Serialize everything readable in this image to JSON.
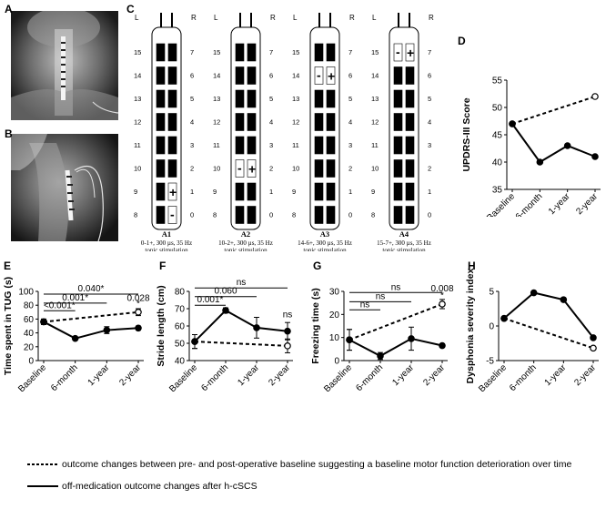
{
  "panels": {
    "A": "A",
    "B": "B",
    "C": "C",
    "D": "D",
    "E": "E",
    "F": "F",
    "G": "G",
    "H": "H"
  },
  "electrodes": [
    {
      "id": "A1",
      "caption": [
        "0-1+, 300 µs, 35 Hz",
        "tonic stimulation"
      ],
      "contacts": {
        "9": "+",
        "8": "-"
      }
    },
    {
      "id": "A2",
      "caption": [
        "10-2+, 300 µs, 35 Hz",
        "tonic stimulation"
      ],
      "contacts": {
        "10": "- +"
      }
    },
    {
      "id": "A3",
      "caption": [
        "14-6+, 300 µs, 35 Hz",
        "tonic stimulation"
      ],
      "contacts": {
        "14": "- +"
      }
    },
    {
      "id": "A4",
      "caption": [
        "15-7+, 300 µs, 35 Hz",
        "tonic stimulation"
      ],
      "contacts": {
        "15": "- +"
      }
    }
  ],
  "electrode_side_labels": {
    "left": "L",
    "right": "R"
  },
  "electrode_left_numbers": [
    "15",
    "14",
    "13",
    "12",
    "11",
    "10",
    "9",
    "8"
  ],
  "electrode_right_numbers": [
    "7",
    "6",
    "5",
    "4",
    "3",
    "2",
    "1",
    "0"
  ],
  "chart_data": [
    {
      "panel": "D",
      "type": "line",
      "categories": [
        "Baseline",
        "6-month",
        "1-year",
        "2-year"
      ],
      "ylabel": "UPDRS-III Score",
      "ylim": [
        35,
        55
      ],
      "yticks": [
        35,
        40,
        45,
        50,
        55
      ],
      "series": [
        {
          "style": "solid",
          "values": [
            47,
            40,
            43,
            41
          ]
        },
        {
          "style": "dashed",
          "values": [
            47,
            null,
            null,
            52
          ]
        }
      ]
    },
    {
      "panel": "E",
      "type": "line",
      "categories": [
        "Baseline",
        "6-month",
        "1-year",
        "2-year"
      ],
      "ylabel": "Time spent in TUG (s)",
      "ylim": [
        0,
        100
      ],
      "yticks": [
        0,
        20,
        40,
        60,
        80,
        100
      ],
      "series": [
        {
          "style": "solid",
          "values": [
            56,
            32,
            44,
            47
          ],
          "errors": [
            4,
            0,
            5,
            3
          ]
        },
        {
          "style": "dashed",
          "values": [
            56,
            null,
            null,
            70
          ],
          "errors": [
            4,
            0,
            0,
            5
          ]
        }
      ],
      "annotations": [
        {
          "text": "<0.001*",
          "from": 0,
          "to": 1,
          "y": 72
        },
        {
          "text": "0.001*",
          "from": 0,
          "to": 2,
          "y": 83
        },
        {
          "text": "0.040*",
          "from": 0,
          "to": 3,
          "y": 96
        },
        {
          "text": "0.028",
          "at": 3,
          "y": 86
        },
        {
          "text": "*",
          "at": 3,
          "y": 78
        }
      ]
    },
    {
      "panel": "F",
      "type": "line",
      "categories": [
        "Baseline",
        "6-month",
        "1-year",
        "2-year"
      ],
      "ylabel": "Stride length (cm)",
      "ylim": [
        40,
        80
      ],
      "yticks": [
        40,
        50,
        60,
        70,
        80
      ],
      "series": [
        {
          "style": "solid",
          "values": [
            51,
            69,
            59,
            57
          ],
          "errors": [
            4,
            1.5,
            6,
            5
          ]
        },
        {
          "style": "dashed",
          "values": [
            51,
            null,
            null,
            48.5
          ],
          "errors": [
            4,
            0,
            0,
            4
          ]
        }
      ],
      "annotations": [
        {
          "text": "0.001*",
          "from": 0,
          "to": 1,
          "y": 72
        },
        {
          "text": "0.060",
          "from": 0,
          "to": 2,
          "y": 77
        },
        {
          "text": "ns",
          "from": 0,
          "to": 3,
          "y": 82
        },
        {
          "text": "ns",
          "at": 3,
          "y": 65
        }
      ]
    },
    {
      "panel": "G",
      "type": "line",
      "categories": [
        "Baseline",
        "6-month",
        "1-year",
        "2-year"
      ],
      "ylabel": "Freezing time (s)",
      "ylim": [
        0,
        30
      ],
      "yticks": [
        0,
        10,
        20,
        30
      ],
      "series": [
        {
          "style": "solid",
          "values": [
            9,
            2,
            9.5,
            6.5
          ],
          "errors": [
            4.5,
            1.5,
            5,
            0.8
          ]
        },
        {
          "style": "dashed",
          "values": [
            9,
            null,
            null,
            24.5
          ],
          "errors": [
            4.5,
            0,
            0,
            2
          ]
        }
      ],
      "annotations": [
        {
          "text": "ns",
          "from": 0,
          "to": 1,
          "y": 22
        },
        {
          "text": "ns",
          "from": 0,
          "to": 2,
          "y": 25.5
        },
        {
          "text": "ns",
          "from": 0,
          "to": 3,
          "y": 29.5
        },
        {
          "text": "0.008",
          "at": 3,
          "y": 30
        },
        {
          "text": "*",
          "at": 3,
          "y": 27
        }
      ]
    },
    {
      "panel": "H",
      "type": "line",
      "categories": [
        "Baseline",
        "6-month",
        "1-year",
        "2-year"
      ],
      "ylabel": "Dysphonia severity index",
      "ylim": [
        -5,
        5
      ],
      "yticks": [
        -5,
        0,
        5
      ],
      "series": [
        {
          "style": "solid",
          "values": [
            1.1,
            4.8,
            3.8,
            -1.7
          ]
        },
        {
          "style": "dashed",
          "values": [
            1.1,
            null,
            null,
            -3.2
          ]
        }
      ]
    }
  ],
  "legend": {
    "dashed": "outcome changes between pre- and post-operative baseline suggesting a baseline motor function deterioration over time",
    "solid": "off-medication outcome changes after h-cSCS"
  }
}
